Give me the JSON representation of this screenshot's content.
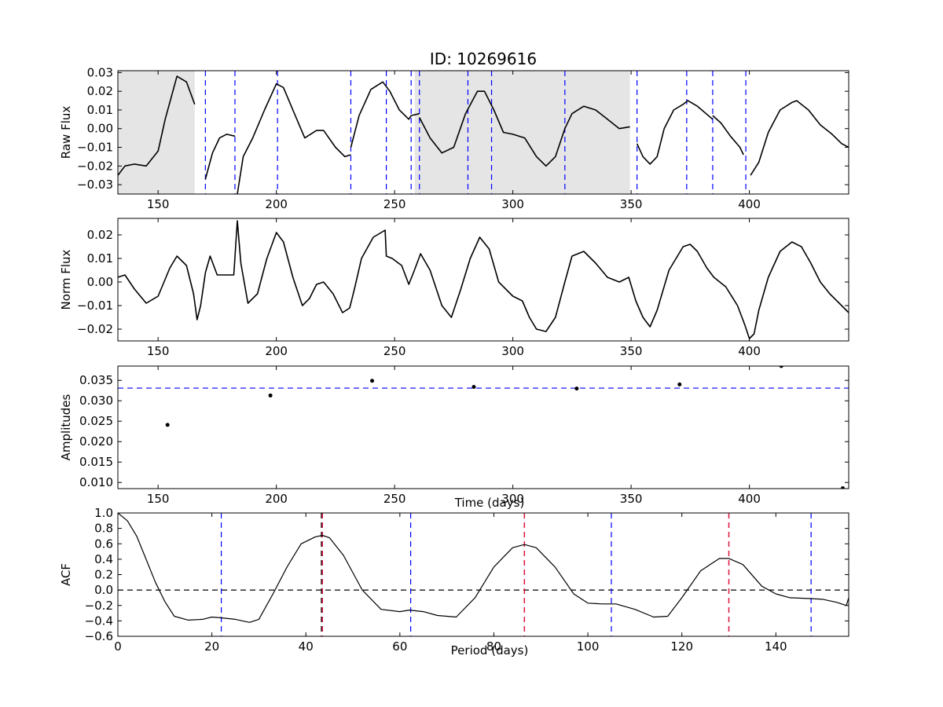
{
  "title": "ID: 10269616",
  "colors": {
    "line": "#000000",
    "blue_dash": "#0000ff",
    "red_dash": "#dc143c",
    "shade": "#e5e5e5"
  },
  "chart_data": [
    {
      "type": "line",
      "panel": "raw",
      "ylabel": "Raw Flux",
      "xlabel": "",
      "xlim": [
        133,
        442
      ],
      "ylim": [
        -0.035,
        0.031
      ],
      "xticks": [
        150,
        200,
        250,
        300,
        350,
        400
      ],
      "yticks": [
        -0.03,
        -0.02,
        -0.01,
        0.0,
        0.01,
        0.02,
        0.03
      ],
      "shaded_ranges": [
        [
          133,
          165.5
        ],
        [
          258.5,
          349.5
        ]
      ],
      "vlines_blue_dashed": [
        170,
        182.5,
        200.5,
        231.5,
        246.5,
        257,
        260.5,
        281,
        291,
        322,
        352.5,
        373.5,
        384.5,
        398.5
      ],
      "series": [
        {
          "x": [
            133,
            136,
            140,
            145,
            150,
            153,
            158,
            162,
            165.5
          ],
          "y": [
            -0.025,
            -0.02,
            -0.019,
            -0.02,
            -0.012,
            0.005,
            0.028,
            0.025,
            0.013
          ]
        },
        {
          "x": [
            170,
            173,
            176,
            179,
            182.5
          ],
          "y": [
            -0.027,
            -0.013,
            -0.005,
            -0.003,
            -0.004
          ]
        },
        {
          "x": [
            183.5,
            186,
            190,
            195,
            200,
            203,
            207,
            212,
            217,
            220,
            225,
            229,
            231.5
          ],
          "y": [
            -0.035,
            -0.015,
            -0.005,
            0.01,
            0.024,
            0.022,
            0.01,
            -0.005,
            -0.001,
            -0.001,
            -0.01,
            -0.015,
            -0.014
          ]
        },
        {
          "x": [
            231.5,
            235,
            240,
            245,
            248,
            252,
            256,
            257
          ],
          "y": [
            -0.01,
            0.007,
            0.021,
            0.025,
            0.02,
            0.01,
            0.005,
            0.007
          ]
        },
        {
          "x": [
            257,
            260.5
          ],
          "y": [
            0.007,
            0.008
          ]
        },
        {
          "x": [
            260.5,
            265,
            270,
            275,
            280,
            285,
            288,
            292,
            296,
            300,
            305,
            310,
            314,
            318,
            322,
            325,
            330,
            335,
            340,
            345,
            349.5
          ],
          "y": [
            0.006,
            -0.005,
            -0.013,
            -0.01,
            0.008,
            0.02,
            0.02,
            0.01,
            -0.002,
            -0.003,
            -0.005,
            -0.015,
            -0.02,
            -0.015,
            0.0,
            0.008,
            0.012,
            0.01,
            0.005,
            0.0,
            0.001
          ]
        },
        {
          "x": [
            352.5,
            355,
            358,
            361,
            364,
            368,
            372,
            374,
            378,
            384.5
          ],
          "y": [
            -0.008,
            -0.015,
            -0.019,
            -0.015,
            0.0,
            0.01,
            0.013,
            0.015,
            0.012,
            0.005
          ]
        },
        {
          "x": [
            384.5,
            388,
            392,
            396,
            397.5
          ],
          "y": [
            0.007,
            0.003,
            -0.004,
            -0.01,
            -0.014
          ]
        },
        {
          "x": [
            400.5,
            404,
            408,
            413,
            418,
            420,
            425,
            430,
            435,
            439,
            442
          ],
          "y": [
            -0.025,
            -0.018,
            -0.002,
            0.01,
            0.014,
            0.015,
            0.01,
            0.002,
            -0.003,
            -0.008,
            -0.01
          ]
        }
      ]
    },
    {
      "type": "line",
      "panel": "norm",
      "ylabel": "Norm Flux",
      "xlabel": "",
      "xlim": [
        133,
        442
      ],
      "ylim": [
        -0.025,
        0.027
      ],
      "xticks": [
        150,
        200,
        250,
        300,
        350,
        400
      ],
      "yticks": [
        -0.02,
        -0.01,
        0.0,
        0.01,
        0.02
      ],
      "series": [
        {
          "x": [
            133,
            136,
            140,
            145,
            150,
            155,
            158,
            162,
            165,
            166.5,
            168,
            170,
            172,
            175,
            178,
            182,
            183.5,
            185,
            188,
            192,
            196,
            200,
            203,
            207,
            211,
            214,
            217,
            220,
            224,
            228,
            231,
            233,
            236,
            241,
            246,
            246.5,
            249,
            253,
            256,
            258,
            261,
            265,
            270,
            274,
            278,
            282,
            286,
            290,
            294,
            300,
            304,
            307,
            310,
            314,
            318,
            322,
            325,
            330,
            335,
            340,
            345,
            349,
            352,
            355,
            358,
            361,
            366,
            372,
            375,
            378,
            382,
            385,
            390,
            395,
            398,
            400,
            402,
            404,
            408,
            413,
            418,
            422,
            426,
            430,
            434,
            438,
            442
          ],
          "y": [
            0.002,
            0.003,
            -0.003,
            -0.009,
            -0.006,
            0.006,
            0.011,
            0.007,
            -0.005,
            -0.016,
            -0.01,
            0.004,
            0.011,
            0.003,
            0.003,
            0.003,
            0.026,
            0.008,
            -0.009,
            -0.005,
            0.01,
            0.021,
            0.017,
            0.002,
            -0.01,
            -0.007,
            -0.001,
            0.0,
            -0.005,
            -0.013,
            -0.011,
            -0.003,
            0.01,
            0.019,
            0.022,
            0.011,
            0.01,
            0.007,
            -0.001,
            0.004,
            0.012,
            0.005,
            -0.01,
            -0.015,
            -0.003,
            0.01,
            0.019,
            0.014,
            0.0,
            -0.006,
            -0.008,
            -0.015,
            -0.02,
            -0.021,
            -0.015,
            0.0,
            0.011,
            0.013,
            0.008,
            0.002,
            0.0,
            0.002,
            -0.008,
            -0.015,
            -0.019,
            -0.012,
            0.005,
            0.015,
            0.016,
            0.013,
            0.006,
            0.002,
            -0.002,
            -0.01,
            -0.018,
            -0.024,
            -0.022,
            -0.012,
            0.002,
            0.013,
            0.017,
            0.015,
            0.008,
            0.0,
            -0.005,
            -0.009,
            -0.013
          ]
        }
      ]
    },
    {
      "type": "scatter",
      "panel": "amplitudes",
      "ylabel": "Amplitudes",
      "xlabel": "Time (days)",
      "xlim": [
        133,
        442
      ],
      "ylim": [
        0.0085,
        0.0385
      ],
      "xticks": [
        150,
        200,
        250,
        300,
        350,
        400
      ],
      "yticks": [
        0.01,
        0.015,
        0.02,
        0.025,
        0.03,
        0.035
      ],
      "hline_blue_dashed": 0.0331,
      "points": [
        {
          "x": 154,
          "y": 0.0241
        },
        {
          "x": 197.5,
          "y": 0.0313
        },
        {
          "x": 240.5,
          "y": 0.0349
        },
        {
          "x": 283.5,
          "y": 0.0334
        },
        {
          "x": 327,
          "y": 0.033
        },
        {
          "x": 370.5,
          "y": 0.034
        },
        {
          "x": 413.5,
          "y": 0.0385
        },
        {
          "x": 439.5,
          "y": 0.0086
        }
      ]
    },
    {
      "type": "line",
      "panel": "acf",
      "ylabel": "ACF",
      "xlabel": "Period (days)",
      "xlim": [
        0,
        155.5
      ],
      "ylim": [
        -0.6,
        1.0
      ],
      "xticks": [
        0,
        20,
        40,
        60,
        80,
        100,
        120,
        140
      ],
      "yticks": [
        -0.6,
        -0.4,
        -0.2,
        0.0,
        0.2,
        0.4,
        0.6,
        0.8,
        1.0
      ],
      "hline_black_dashed": 0.0,
      "vlines_blue_dashed": [
        22,
        43.5,
        62.3,
        105,
        147.5
      ],
      "vlines_red_dashed": [
        43.5,
        86.5,
        130
      ],
      "vlines_black_dashed": [
        43.3
      ],
      "series": [
        {
          "x": [
            0,
            2,
            4,
            6,
            8,
            10,
            12,
            15,
            18,
            20,
            22,
            25,
            28,
            30,
            33,
            36,
            39,
            42,
            43.5,
            45,
            48,
            52,
            56,
            60,
            62,
            65,
            68,
            72,
            76,
            80,
            84,
            86.5,
            89,
            93,
            97,
            100,
            103,
            106,
            110,
            114,
            117,
            120,
            124,
            128,
            130,
            133,
            137,
            140,
            143,
            147,
            150,
            153,
            155,
            155.5
          ],
          "y": [
            1.0,
            0.9,
            0.7,
            0.4,
            0.1,
            -0.15,
            -0.34,
            -0.39,
            -0.38,
            -0.35,
            -0.36,
            -0.38,
            -0.42,
            -0.38,
            -0.05,
            0.3,
            0.6,
            0.69,
            0.71,
            0.68,
            0.45,
            0.0,
            -0.25,
            -0.28,
            -0.26,
            -0.28,
            -0.33,
            -0.35,
            -0.1,
            0.3,
            0.55,
            0.59,
            0.55,
            0.3,
            -0.05,
            -0.17,
            -0.18,
            -0.18,
            -0.25,
            -0.35,
            -0.34,
            -0.1,
            0.25,
            0.41,
            0.41,
            0.33,
            0.05,
            -0.05,
            -0.1,
            -0.11,
            -0.12,
            -0.16,
            -0.2,
            -0.1
          ]
        }
      ]
    }
  ]
}
